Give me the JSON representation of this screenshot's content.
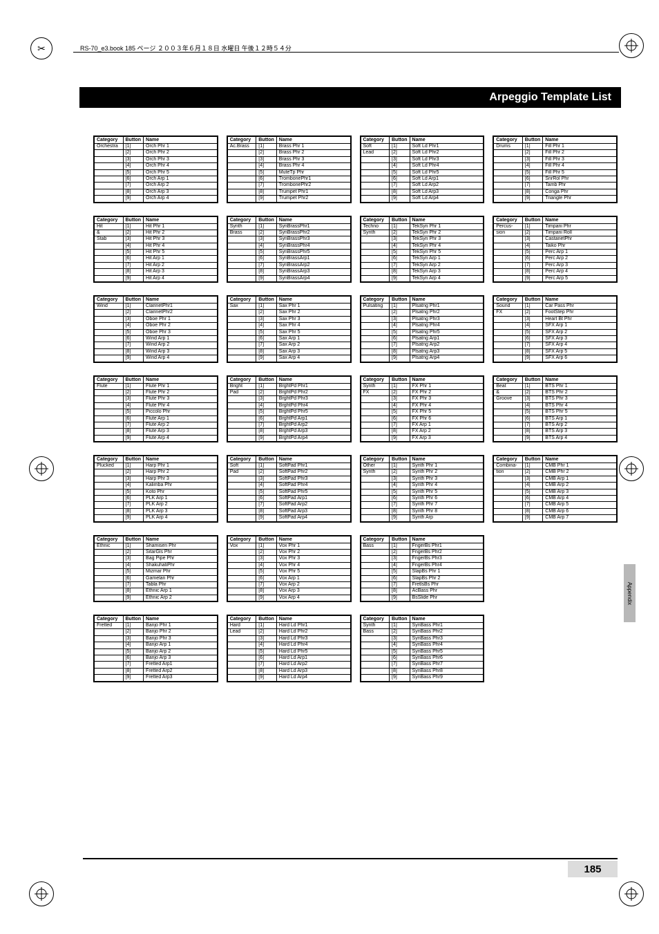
{
  "meta": {
    "book_line": "RS-70_e3.book 185 ページ ２００３年６月１８日 水曜日 午後１２時５４分",
    "title": "Arpeggio Template List",
    "side_tab": "Appendix",
    "page_number": "185"
  },
  "headers": {
    "cat": "Category",
    "btn": "Button",
    "name": "Name"
  },
  "tables": [
    {
      "cat": "Orchestra",
      "rows": [
        [
          "[1]",
          "Orch Phr 1"
        ],
        [
          "[2]",
          "Orch Phr 2"
        ],
        [
          "[3]",
          "Orch Phr 3"
        ],
        [
          "[4]",
          "Orch Phr 4"
        ],
        [
          "[5]",
          "Orch Phr 5"
        ],
        [
          "[6]",
          "Orch Arp 1"
        ],
        [
          "[7]",
          "Orch Arp 2"
        ],
        [
          "[8]",
          "Orch Arp 3"
        ],
        [
          "[9]",
          "Orch Arp 4"
        ]
      ]
    },
    {
      "cat": "Ac.Brass",
      "rows": [
        [
          "[1]",
          "Brass Phr 1"
        ],
        [
          "[2]",
          "Brass Phr 2"
        ],
        [
          "[3]",
          "Brass Phr 3"
        ],
        [
          "[4]",
          "Brass Phr 4"
        ],
        [
          "[5]",
          "MuteTp Phr"
        ],
        [
          "[6]",
          "TrombonePhr1"
        ],
        [
          "[7]",
          "TrombonePhr2"
        ],
        [
          "[8]",
          "Trumpet Phr1"
        ],
        [
          "[9]",
          "Trumpet Phr2"
        ]
      ]
    },
    {
      "cat": "Soft Lead",
      "rows": [
        [
          "[1]",
          "Soft Ld Phr1"
        ],
        [
          "[2]",
          "Soft Ld Phr2"
        ],
        [
          "[3]",
          "Soft Ld Phr3"
        ],
        [
          "[4]",
          "Soft Ld Phr4"
        ],
        [
          "[5]",
          "Soft Ld Phr5"
        ],
        [
          "[6]",
          "Soft Ld Arp1"
        ],
        [
          "[7]",
          "Soft Ld Arp2"
        ],
        [
          "[8]",
          "Soft Ld Arp3"
        ],
        [
          "[9]",
          "Soft Ld Arp4"
        ]
      ]
    },
    {
      "cat": "Drums",
      "rows": [
        [
          "[1]",
          "Fill Phr 1"
        ],
        [
          "[2]",
          "Fill Phr 2"
        ],
        [
          "[3]",
          "Fill Phr 3"
        ],
        [
          "[4]",
          "Fill Phr 4"
        ],
        [
          "[5]",
          "Fill Phr 5"
        ],
        [
          "[6]",
          "SnrRol Phr"
        ],
        [
          "[7]",
          "Tamb Phr"
        ],
        [
          "[8]",
          "Conga Phr"
        ],
        [
          "[9]",
          "Triangle Phr"
        ]
      ]
    },
    {
      "cat": "Hit & Stab",
      "rows": [
        [
          "[1]",
          "Hit Phr 1"
        ],
        [
          "[2]",
          "Hit Phr 2"
        ],
        [
          "[3]",
          "Hit Phr 3"
        ],
        [
          "[4]",
          "Hit Phr 4"
        ],
        [
          "[5]",
          "Hit Phr 5"
        ],
        [
          "[6]",
          "Hit Arp 1"
        ],
        [
          "[7]",
          "Hit Arp 2"
        ],
        [
          "[8]",
          "Hit Arp 3"
        ],
        [
          "[9]",
          "Hit Arp 4"
        ]
      ]
    },
    {
      "cat": "Synth Brass",
      "rows": [
        [
          "[1]",
          "SynBrassPhr1"
        ],
        [
          "[2]",
          "SynBrassPhr2"
        ],
        [
          "[3]",
          "SynBrassPhr3"
        ],
        [
          "[4]",
          "SynBrassPhr4"
        ],
        [
          "[5]",
          "SynBrassPhr5"
        ],
        [
          "[6]",
          "SynBrassArp1"
        ],
        [
          "[7]",
          "SynBrassArp2"
        ],
        [
          "[8]",
          "SynBrassArp3"
        ],
        [
          "[9]",
          "SynBrassArp4"
        ]
      ]
    },
    {
      "cat": "Techno Synth",
      "rows": [
        [
          "[1]",
          "TekSyn Phr 1"
        ],
        [
          "[2]",
          "TekSyn Phr 2"
        ],
        [
          "[3]",
          "TekSyn Phr 3"
        ],
        [
          "[4]",
          "TekSyn Phr 4"
        ],
        [
          "[5]",
          "TekSyn Phr 5"
        ],
        [
          "[6]",
          "TekSyn Arp 1"
        ],
        [
          "[7]",
          "TekSyn Arp 2"
        ],
        [
          "[8]",
          "TekSyn Arp 3"
        ],
        [
          "[9]",
          "TekSyn Arp 4"
        ]
      ]
    },
    {
      "cat": "Percus- sion",
      "rows": [
        [
          "[1]",
          "Timpani Phr"
        ],
        [
          "[2]",
          "Timpani Roll"
        ],
        [
          "[3]",
          "CastanetPhr"
        ],
        [
          "[4]",
          "Taiko Phr"
        ],
        [
          "[5]",
          "Perc Arp 1"
        ],
        [
          "[6]",
          "Perc Arp 2"
        ],
        [
          "[7]",
          "Perc Arp 3"
        ],
        [
          "[8]",
          "Perc Arp 4"
        ],
        [
          "[9]",
          "Perc Arp 5"
        ]
      ]
    },
    {
      "cat": "Wind",
      "rows": [
        [
          "[1]",
          "ClarinetPhr1"
        ],
        [
          "[2]",
          "ClarinetPhr2"
        ],
        [
          "[3]",
          "Oboe Phr 1"
        ],
        [
          "[4]",
          "Oboe Phr 2"
        ],
        [
          "[5]",
          "Oboe Phr 3"
        ],
        [
          "[6]",
          "Wind Arp 1"
        ],
        [
          "[7]",
          "Wind Arp 2"
        ],
        [
          "[8]",
          "Wind Arp 3"
        ],
        [
          "[9]",
          "Wind Arp 4"
        ]
      ]
    },
    {
      "cat": "Sax",
      "rows": [
        [
          "[1]",
          "Sax Phr 1"
        ],
        [
          "[2]",
          "Sax Phr 2"
        ],
        [
          "[3]",
          "Sax Phr 3"
        ],
        [
          "[4]",
          "Sax Phr 4"
        ],
        [
          "[5]",
          "Sax Phr 5"
        ],
        [
          "[6]",
          "Sax Arp 1"
        ],
        [
          "[7]",
          "Sax Arp 2"
        ],
        [
          "[8]",
          "Sax Arp 3"
        ],
        [
          "[9]",
          "Sax Arp 4"
        ]
      ]
    },
    {
      "cat": "Pulsating",
      "rows": [
        [
          "[1]",
          "Plsatng Phr1"
        ],
        [
          "[2]",
          "Plsatng Phr2"
        ],
        [
          "[3]",
          "Plsatng Phr3"
        ],
        [
          "[4]",
          "Plsatng Phr4"
        ],
        [
          "[5]",
          "Plsatng Phr5"
        ],
        [
          "[6]",
          "Plsatng Arp1"
        ],
        [
          "[7]",
          "Plsatng Arp2"
        ],
        [
          "[8]",
          "Plsatng Arp3"
        ],
        [
          "[9]",
          "Plsatng Arp4"
        ]
      ]
    },
    {
      "cat": "Sound FX",
      "rows": [
        [
          "[1]",
          "Car Pass Phr"
        ],
        [
          "[2]",
          "FootStep Phr"
        ],
        [
          "[3]",
          "Heart Bt Phr"
        ],
        [
          "[4]",
          "SFX Arp 1"
        ],
        [
          "[5]",
          "SFX Arp 2"
        ],
        [
          "[6]",
          "SFX Arp 3"
        ],
        [
          "[7]",
          "SFX Arp 4"
        ],
        [
          "[8]",
          "SFX Arp 5"
        ],
        [
          "[9]",
          "SFX Arp 6"
        ]
      ]
    },
    {
      "cat": "Flute",
      "rows": [
        [
          "[1]",
          "Flute Phr 1"
        ],
        [
          "[2]",
          "Flute Phr 2"
        ],
        [
          "[3]",
          "Flute Phr 3"
        ],
        [
          "[4]",
          "Flute Phr 4"
        ],
        [
          "[5]",
          "Piccolo Phr"
        ],
        [
          "[6]",
          "Flute Arp 1"
        ],
        [
          "[7]",
          "Flute Arp 2"
        ],
        [
          "[8]",
          "Flute Arp 3"
        ],
        [
          "[9]",
          "Flute Arp 4"
        ]
      ]
    },
    {
      "cat": "Bright Pad",
      "rows": [
        [
          "[1]",
          "BrghtPd Phr1"
        ],
        [
          "[2]",
          "BrghtPd Phr2"
        ],
        [
          "[3]",
          "BrghtPd Phr3"
        ],
        [
          "[4]",
          "BrghtPd Phr4"
        ],
        [
          "[5]",
          "BrghtPd Phr5"
        ],
        [
          "[6]",
          "BrghtPd Arp1"
        ],
        [
          "[7]",
          "BrghtPd Arp2"
        ],
        [
          "[8]",
          "BrghtPd Arp3"
        ],
        [
          "[9]",
          "BrghtPd Arp4"
        ]
      ]
    },
    {
      "cat": "Synth FX",
      "rows": [
        [
          "[1]",
          "FX Phr 1"
        ],
        [
          "[2]",
          "FX Phr 2"
        ],
        [
          "[3]",
          "FX Phr 3"
        ],
        [
          "[4]",
          "FX Phr 4"
        ],
        [
          "[5]",
          "FX Phr 5"
        ],
        [
          "[6]",
          "FX Phr 6"
        ],
        [
          "[7]",
          "FX Arp 1"
        ],
        [
          "[8]",
          "FX Arp 2"
        ],
        [
          "[9]",
          "FX Arp 3"
        ]
      ]
    },
    {
      "cat": "Beat & Groove",
      "rows": [
        [
          "[1]",
          "BTS Phr 1"
        ],
        [
          "[2]",
          "BTS Phr 2"
        ],
        [
          "[3]",
          "BTS Phr 3"
        ],
        [
          "[4]",
          "BTS Phr 4"
        ],
        [
          "[5]",
          "BTS Phr 5"
        ],
        [
          "[6]",
          "BTS Arp 1"
        ],
        [
          "[7]",
          "BTS Arp 2"
        ],
        [
          "[8]",
          "BTS Arp 3"
        ],
        [
          "[9]",
          "BTS Arp 4"
        ]
      ]
    },
    {
      "cat": "Plucked",
      "rows": [
        [
          "[1]",
          "Harp Phr 1"
        ],
        [
          "[2]",
          "Harp Phr 2"
        ],
        [
          "[3]",
          "Harp Phr 3"
        ],
        [
          "[4]",
          "Kalimba Phr"
        ],
        [
          "[5]",
          "Koto Phr"
        ],
        [
          "[6]",
          "PLK Arp 1"
        ],
        [
          "[7]",
          "PLK Arp 2"
        ],
        [
          "[8]",
          "PLK Arp 3"
        ],
        [
          "[9]",
          "PLK Arp 4"
        ]
      ]
    },
    {
      "cat": "Soft Pad",
      "rows": [
        [
          "[1]",
          "SoftPad Phr1"
        ],
        [
          "[2]",
          "SoftPad Phr2"
        ],
        [
          "[3]",
          "SoftPad Phr3"
        ],
        [
          "[4]",
          "SoftPad Phr4"
        ],
        [
          "[5]",
          "SoftPad Phr5"
        ],
        [
          "[6]",
          "SoftPad Arp1"
        ],
        [
          "[7]",
          "SoftPad Arp2"
        ],
        [
          "[8]",
          "SoftPad Arp3"
        ],
        [
          "[9]",
          "SoftPad Arp4"
        ]
      ]
    },
    {
      "cat": "Other Synth",
      "rows": [
        [
          "[1]",
          "Synth Phr 1"
        ],
        [
          "[2]",
          "Synth Phr 2"
        ],
        [
          "[3]",
          "Synth Phr 3"
        ],
        [
          "[4]",
          "Synth Phr 4"
        ],
        [
          "[5]",
          "Synth Phr 5"
        ],
        [
          "[6]",
          "Synth Phr 6"
        ],
        [
          "[7]",
          "Synth Phr 7"
        ],
        [
          "[8]",
          "Synth Phr 8"
        ],
        [
          "[9]",
          "Synth Arp"
        ]
      ]
    },
    {
      "cat": "Combina- tion",
      "rows": [
        [
          "[1]",
          "CMB Phr 1"
        ],
        [
          "[2]",
          "CMB Phr 2"
        ],
        [
          "[3]",
          "CMB Arp 1"
        ],
        [
          "[4]",
          "CMB Arp 2"
        ],
        [
          "[5]",
          "CMB Arp 3"
        ],
        [
          "[6]",
          "CMB Arp 4"
        ],
        [
          "[7]",
          "CMB Arp 5"
        ],
        [
          "[8]",
          "CMB Arp 6"
        ],
        [
          "[9]",
          "CMB Arp 7"
        ]
      ]
    },
    {
      "cat": "Ethnic",
      "rows": [
        [
          "[1]",
          "Shamisen Phr"
        ],
        [
          "[2]",
          "SitarGls Phr"
        ],
        [
          "[3]",
          "Bag Pipe Phr"
        ],
        [
          "[4]",
          "ShakuhatiPhr"
        ],
        [
          "[5]",
          "Mizmar Phr"
        ],
        [
          "[6]",
          "Gamelan Phr"
        ],
        [
          "[7]",
          "Tabla Phr"
        ],
        [
          "[8]",
          "Ethnic Arp 1"
        ],
        [
          "[9]",
          "Ethnic Arp 2"
        ]
      ]
    },
    {
      "cat": "Vox",
      "rows": [
        [
          "[1]",
          "Vox Phr 1"
        ],
        [
          "[2]",
          "Vox Phr 2"
        ],
        [
          "[3]",
          "Vox Phr 3"
        ],
        [
          "[4]",
          "Vox Phr 4"
        ],
        [
          "[5]",
          "Vox Phr 5"
        ],
        [
          "[6]",
          "Vox Arp 1"
        ],
        [
          "[7]",
          "Vox Arp 2"
        ],
        [
          "[8]",
          "Vox Arp 3"
        ],
        [
          "[9]",
          "Vox Arp 4"
        ]
      ]
    },
    {
      "cat": "Bass",
      "rows": [
        [
          "[1]",
          "FngerBs Phr1"
        ],
        [
          "[2]",
          "FngerBs Phr2"
        ],
        [
          "[3]",
          "FngerBs Phr3"
        ],
        [
          "[4]",
          "FngerBs Phr4"
        ],
        [
          "[5]",
          "SlapBs Phr 1"
        ],
        [
          "[6]",
          "SlapBs Phr 2"
        ],
        [
          "[7]",
          "FretlsBs Phr"
        ],
        [
          "[8]",
          "AcBass Phr"
        ],
        [
          "[9]",
          "BsSlide Phr"
        ]
      ]
    },
    {
      "cat": "",
      "rows": []
    },
    {
      "cat": "Fretted",
      "rows": [
        [
          "[1]",
          "Banjo Phr 1"
        ],
        [
          "[2]",
          "Banjo Phr 2"
        ],
        [
          "[3]",
          "Banjo Phr 3"
        ],
        [
          "[4]",
          "Banjo Arp 1"
        ],
        [
          "[5]",
          "Banjo Arp 2"
        ],
        [
          "[6]",
          "Banjo Arp 3"
        ],
        [
          "[7]",
          "Fretted Arp1"
        ],
        [
          "[8]",
          "Fretted Arp2"
        ],
        [
          "[9]",
          "Fretted Arp3"
        ]
      ]
    },
    {
      "cat": "Hard Lead",
      "rows": [
        [
          "[1]",
          "Hard Ld Phr1"
        ],
        [
          "[2]",
          "Hard Ld Phr2"
        ],
        [
          "[3]",
          "Hard Ld Phr3"
        ],
        [
          "[4]",
          "Hard Ld Phr4"
        ],
        [
          "[5]",
          "Hard Ld Phr5"
        ],
        [
          "[6]",
          "Hard Ld Arp1"
        ],
        [
          "[7]",
          "Hard Ld Arp2"
        ],
        [
          "[8]",
          "Hard Ld Arp3"
        ],
        [
          "[9]",
          "Hard Ld Arp4"
        ]
      ]
    },
    {
      "cat": "Synth Bass",
      "rows": [
        [
          "[1]",
          "SynBass Phr1"
        ],
        [
          "[2]",
          "SynBass Phr2"
        ],
        [
          "[3]",
          "SynBass Phr3"
        ],
        [
          "[4]",
          "SynBass Phr4"
        ],
        [
          "[5]",
          "SynBass Phr5"
        ],
        [
          "[6]",
          "SynBass Phr6"
        ],
        [
          "[7]",
          "SynBass Phr7"
        ],
        [
          "[8]",
          "SynBass Phr8"
        ],
        [
          "[9]",
          "SynBass Phr9"
        ]
      ]
    },
    {
      "cat": "",
      "rows": []
    }
  ]
}
